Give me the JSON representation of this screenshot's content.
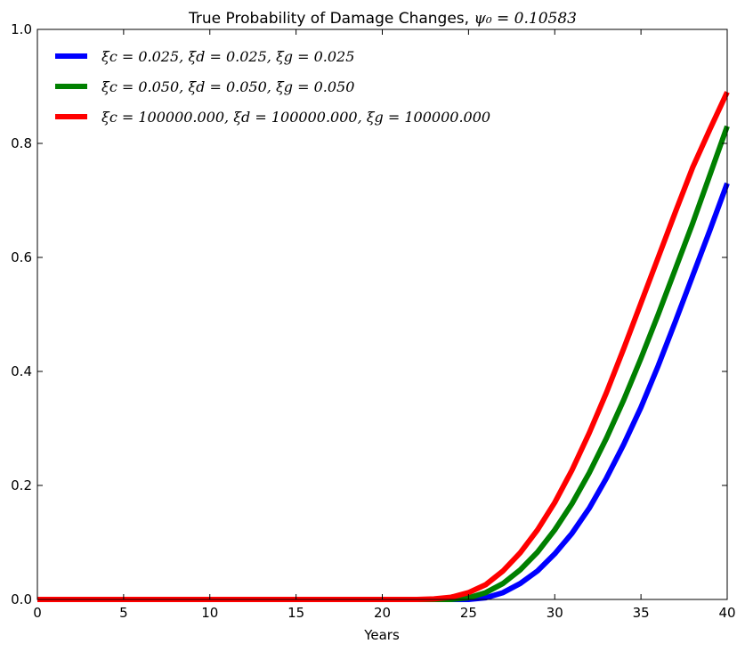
{
  "chart_data": {
    "type": "line",
    "title_prefix": "True Probability of Damage Changes, ",
    "title_math": "ψ₀ = 0.10583",
    "xlabel": "Years",
    "ylabel": "",
    "xlim": [
      0,
      40
    ],
    "ylim": [
      0,
      1
    ],
    "x_ticks": [
      "0",
      "5",
      "10",
      "15",
      "20",
      "25",
      "30",
      "35",
      "40"
    ],
    "y_ticks": [
      "0.0",
      "0.2",
      "0.4",
      "0.6",
      "0.8",
      "1.0"
    ],
    "grid": false,
    "legend_position": "top-left",
    "x": [
      0,
      5,
      10,
      15,
      20,
      22,
      23,
      24,
      25,
      26,
      27,
      28,
      29,
      30,
      31,
      32,
      33,
      34,
      35,
      36,
      37,
      38,
      39,
      40
    ],
    "series": [
      {
        "name": "ξc = 0.025, ξd = 0.025, ξg = 0.025",
        "color": "#0000ff",
        "values": [
          0,
          0,
          0,
          0,
          0,
          0,
          0,
          0,
          0,
          0.003,
          0.012,
          0.028,
          0.05,
          0.08,
          0.116,
          0.16,
          0.213,
          0.272,
          0.337,
          0.41,
          0.488,
          0.568,
          0.648,
          0.73
        ]
      },
      {
        "name": "ξc = 0.050, ξd = 0.050, ξg = 0.050",
        "color": "#008000",
        "values": [
          0,
          0,
          0,
          0,
          0,
          0,
          0,
          0,
          0.003,
          0.012,
          0.028,
          0.052,
          0.083,
          0.122,
          0.168,
          0.222,
          0.283,
          0.35,
          0.423,
          0.5,
          0.58,
          0.66,
          0.745,
          0.83
        ]
      },
      {
        "name": "ξc = 100000.000, ξd = 100000.000, ξg = 100000.000",
        "color": "#ff0000",
        "values": [
          0,
          0,
          0,
          0,
          0,
          0,
          0.001,
          0.004,
          0.012,
          0.026,
          0.05,
          0.082,
          0.122,
          0.17,
          0.227,
          0.292,
          0.363,
          0.44,
          0.52,
          0.6,
          0.68,
          0.758,
          0.825,
          0.89
        ]
      }
    ]
  }
}
